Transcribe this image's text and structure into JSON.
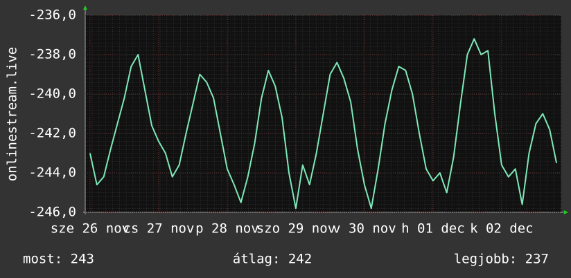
{
  "chart_data": {
    "type": "line",
    "y_label": "onlinestream.live",
    "x": [
      0,
      0.1,
      0.2,
      0.3,
      0.4,
      0.5,
      0.6,
      0.7,
      0.8,
      0.9,
      1.0,
      1.1,
      1.2,
      1.3,
      1.4,
      1.5,
      1.6,
      1.7,
      1.8,
      1.9,
      2.0,
      2.1,
      2.2,
      2.3,
      2.4,
      2.5,
      2.6,
      2.7,
      2.8,
      2.9,
      3.0,
      3.1,
      3.2,
      3.3,
      3.4,
      3.5,
      3.6,
      3.7,
      3.8,
      3.9,
      4.0,
      4.1,
      4.2,
      4.3,
      4.4,
      4.5,
      4.6,
      4.7,
      4.8,
      4.9,
      5.0,
      5.1,
      5.2,
      5.3,
      5.4,
      5.5,
      5.6,
      5.7,
      5.8,
      5.9,
      6.0,
      6.1,
      6.2,
      6.3,
      6.4,
      6.5,
      6.6,
      6.7,
      6.8
    ],
    "series": [
      {
        "color": "#7de9b9",
        "values": [
          -243.0,
          -244.6,
          -244.2,
          -242.8,
          -241.5,
          -240.2,
          -238.6,
          -238.0,
          -239.8,
          -241.6,
          -242.4,
          -243.0,
          -244.2,
          -243.6,
          -242.0,
          -240.5,
          -239.0,
          -239.4,
          -240.2,
          -242.0,
          -243.8,
          -244.6,
          -245.5,
          -244.2,
          -242.5,
          -240.2,
          -238.8,
          -239.6,
          -241.2,
          -244.0,
          -245.8,
          -243.6,
          -244.6,
          -243.0,
          -241.0,
          -239.0,
          -238.4,
          -239.2,
          -240.4,
          -242.8,
          -244.6,
          -245.8,
          -243.8,
          -241.5,
          -239.8,
          -238.6,
          -238.8,
          -240.0,
          -242.0,
          -243.8,
          -244.4,
          -244.0,
          -245.0,
          -243.2,
          -240.5,
          -238.0,
          -237.2,
          -238.0,
          -237.8,
          -241.0,
          -243.6,
          -244.2,
          -243.8,
          -245.6,
          -243.0,
          -241.5,
          -241.0,
          -241.8,
          -243.5
        ]
      }
    ],
    "xlim": [
      -0.07,
      6.87
    ],
    "xticks": [
      {
        "value": 0,
        "label": "sze 26 nov"
      },
      {
        "value": 1,
        "label": "cs 27 nov"
      },
      {
        "value": 2,
        "label": "p 28 nov"
      },
      {
        "value": 3,
        "label": "szo 29 nov"
      },
      {
        "value": 4,
        "label": "v 30 nov"
      },
      {
        "value": 5,
        "label": "h 01 dec"
      },
      {
        "value": 6,
        "label": "k 02 dec"
      }
    ],
    "ylim": [
      -246,
      -236
    ],
    "yticks": [
      {
        "value": -246,
        "label": "-246,0"
      },
      {
        "value": -244,
        "label": "-244,0"
      },
      {
        "value": -242,
        "label": "-242,0"
      },
      {
        "value": -240,
        "label": "-240,0"
      },
      {
        "value": -238,
        "label": "-238,0"
      },
      {
        "value": -236,
        "label": "-236,0"
      }
    ],
    "grid": true,
    "stats": [
      "most: 243",
      "átlag: 242",
      "legjobb: 237"
    ]
  }
}
